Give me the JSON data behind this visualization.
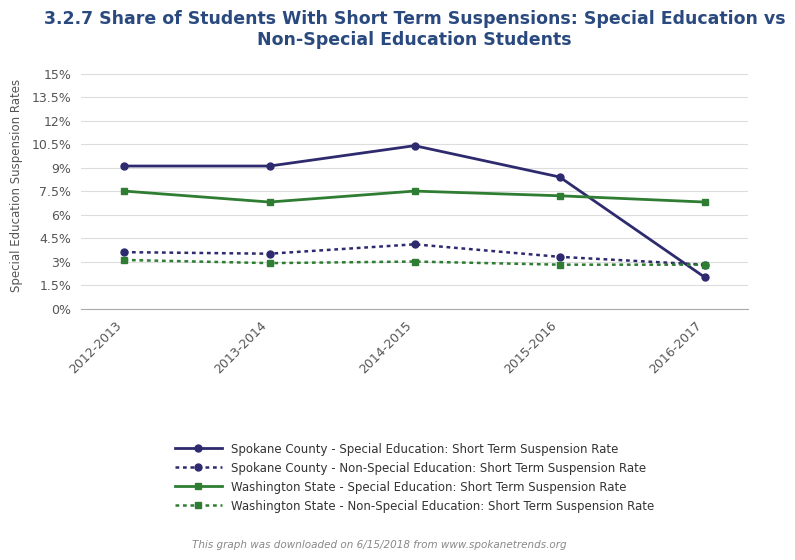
{
  "title": "3.2.7 Share of Students With Short Term Suspensions: Special Education vs\nNon-Special Education Students",
  "ylabel": "Special Education Suspension Rates",
  "footnote": "This graph was downloaded on 6/15/2018 from www.spokanetrends.org",
  "categories": [
    "2012-2013",
    "2013-2014",
    "2014-2015",
    "2015-2016",
    "2016-2017"
  ],
  "series": [
    {
      "label": "Spokane County - Special Education: Short Term Suspension Rate",
      "values": [
        9.1,
        9.1,
        10.4,
        8.4,
        2.0
      ],
      "color": "#2e2a6e",
      "linestyle": "solid",
      "marker": "o",
      "linewidth": 2.0
    },
    {
      "label": "Spokane County - Non-Special Education: Short Term Suspension Rate",
      "values": [
        3.6,
        3.5,
        4.1,
        3.3,
        2.8
      ],
      "color": "#2e2a6e",
      "linestyle": "dotted",
      "marker": "o",
      "linewidth": 1.8
    },
    {
      "label": "Washington State - Special Education: Short Term Suspension Rate",
      "values": [
        7.5,
        6.8,
        7.5,
        7.2,
        6.8
      ],
      "color": "#2e7d32",
      "linestyle": "solid",
      "marker": "s",
      "linewidth": 2.0
    },
    {
      "label": "Washington State - Non-Special Education: Short Term Suspension Rate",
      "values": [
        3.1,
        2.9,
        3.0,
        2.8,
        2.8
      ],
      "color": "#2e7d32",
      "linestyle": "dotted",
      "marker": "s",
      "linewidth": 1.8
    }
  ],
  "yticks": [
    0,
    1.5,
    3.0,
    4.5,
    6.0,
    7.5,
    9.0,
    10.5,
    12.0,
    13.5,
    15.0
  ],
  "ytick_labels": [
    "0%",
    "1.5%",
    "3%",
    "4.5%",
    "6%",
    "7.5%",
    "9%",
    "10.5%",
    "12%",
    "13.5%",
    "15%"
  ],
  "ylim": [
    0,
    15.8
  ],
  "background_color": "#ffffff",
  "grid_color": "#dddddd",
  "title_color": "#2a4a7f",
  "title_fontsize": 12.5,
  "axis_label_fontsize": 8.5,
  "tick_fontsize": 9,
  "legend_fontsize": 8.5,
  "footnote_fontsize": 7.5
}
